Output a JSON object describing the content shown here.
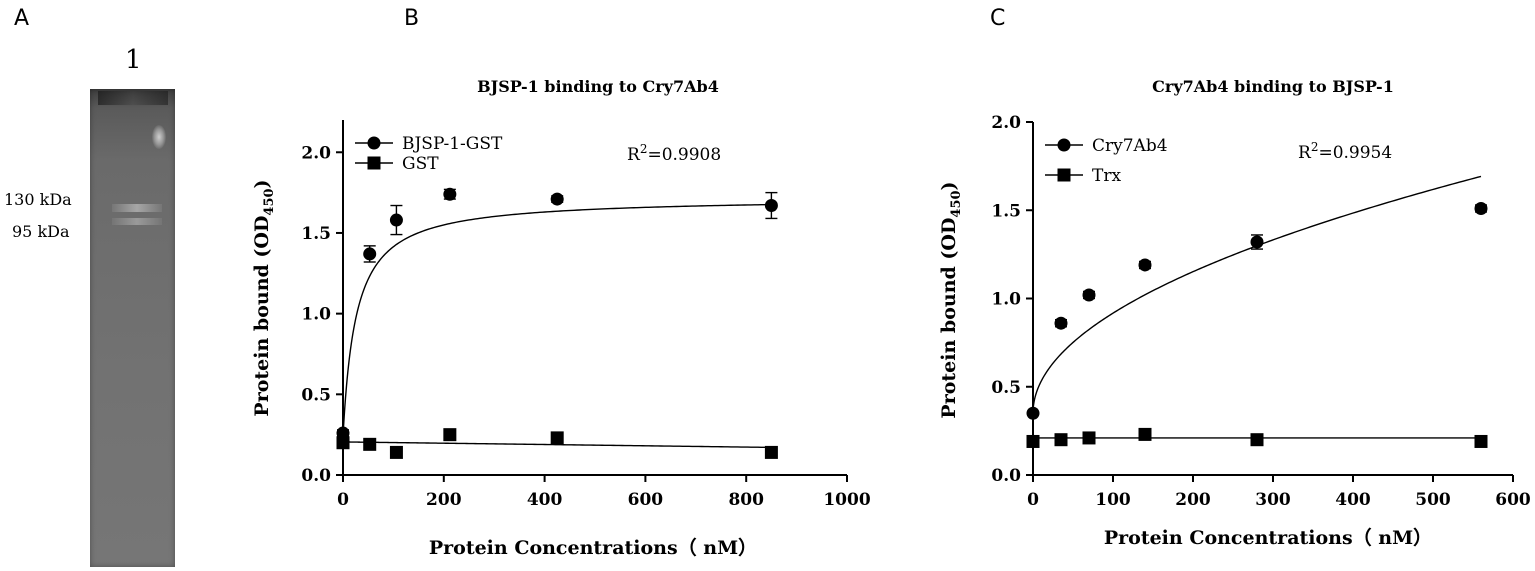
{
  "panels": {
    "a": "A",
    "b": "B",
    "c": "C"
  },
  "gel": {
    "lane_label": "1",
    "marker_130": "130 kDa",
    "marker_95": "95 kDa"
  },
  "chart_data": [
    {
      "type": "scatter",
      "title": "BJSP-1 binding to Cry7Ab4",
      "xlabel": "Protein Concentrations（ nM）",
      "ylabel_main": "Protein bound (OD",
      "ylabel_sub": "450",
      "ylabel_end": ")",
      "xlim": [
        0,
        1000
      ],
      "ylim": [
        0,
        2.2
      ],
      "xticks": [
        0,
        200,
        400,
        600,
        800,
        1000
      ],
      "yticks": [
        0.0,
        0.5,
        1.0,
        1.5,
        2.0
      ],
      "xtick_labels": [
        "0",
        "200",
        "400",
        "600",
        "800",
        "1000"
      ],
      "ytick_labels": [
        "0.0",
        "0.5",
        "1.0",
        "1.5",
        "2.0"
      ],
      "annotation_main": "R",
      "annotation_sup": "2",
      "annotation_rest": "=0.9908",
      "legend_placement": "top-left",
      "series": [
        {
          "name": "BJSP-1-GST",
          "marker": "circle",
          "x": [
            0,
            53,
            106,
            212,
            425,
            850
          ],
          "y": [
            0.26,
            1.37,
            1.58,
            1.74,
            1.71,
            1.67
          ],
          "err": [
            0.02,
            0.05,
            0.09,
            0.03,
            0.02,
            0.08
          ]
        },
        {
          "name": "GST",
          "marker": "square",
          "x": [
            0,
            53,
            106,
            212,
            425,
            850
          ],
          "y": [
            0.2,
            0.19,
            0.14,
            0.25,
            0.23,
            0.14
          ],
          "err": [
            0.02,
            0.01,
            0.01,
            0.02,
            0.01,
            0.01
          ]
        }
      ]
    },
    {
      "type": "scatter",
      "title": "Cry7Ab4 binding to BJSP-1",
      "xlabel": "Protein Concentrations（ nM）",
      "ylabel_main": "Protein bound (OD",
      "ylabel_sub": "450",
      "ylabel_end": ")",
      "xlim": [
        0,
        600
      ],
      "ylim": [
        0,
        2.0
      ],
      "xticks": [
        0,
        100,
        200,
        300,
        400,
        500,
        600
      ],
      "yticks": [
        0.0,
        0.5,
        1.0,
        1.5,
        2.0
      ],
      "xtick_labels": [
        "0",
        "100",
        "200",
        "300",
        "400",
        "500",
        "600"
      ],
      "ytick_labels": [
        "0.0",
        "0.5",
        "1.0",
        "1.5",
        "2.0"
      ],
      "annotation_main": "R",
      "annotation_sup": "2",
      "annotation_rest": "=0.9954",
      "legend_placement": "top-left",
      "series": [
        {
          "name": "Cry7Ab4",
          "marker": "circle",
          "x": [
            0,
            35,
            70,
            140,
            280,
            560
          ],
          "y": [
            0.35,
            0.86,
            1.02,
            1.19,
            1.32,
            1.51
          ],
          "err": [
            0.01,
            0.02,
            0.02,
            0.02,
            0.04,
            0.02
          ]
        },
        {
          "name": "Trx",
          "marker": "square",
          "x": [
            0,
            35,
            70,
            140,
            280,
            560
          ],
          "y": [
            0.19,
            0.2,
            0.21,
            0.23,
            0.2,
            0.19
          ],
          "err": [
            0.01,
            0.01,
            0.01,
            0.01,
            0.01,
            0.01
          ]
        }
      ]
    }
  ]
}
